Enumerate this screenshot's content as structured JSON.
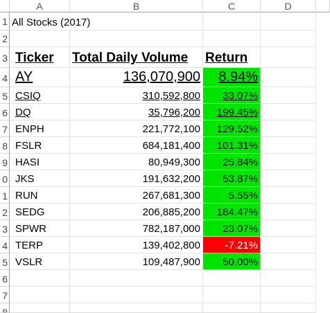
{
  "columns": [
    "A",
    "B",
    "C",
    "D"
  ],
  "row_numbers": [
    "1",
    "2",
    "3",
    "4",
    "5",
    "6",
    "7",
    "8",
    "9",
    "0",
    "1",
    "2",
    "3",
    "4",
    "5",
    "6",
    "7",
    "8"
  ],
  "title": "All Stocks (2017)",
  "headers": {
    "ticker": "Ticker",
    "volume": "Total Daily Volume",
    "return": "Return"
  },
  "rows": [
    {
      "ticker": "AY",
      "volume": "136,070,900",
      "return": "8.94%",
      "status": "positive"
    },
    {
      "ticker": "CSIQ",
      "volume": "310,592,800",
      "return": "33.07%",
      "status": "positive"
    },
    {
      "ticker": "DQ",
      "volume": "35,796,200",
      "return": "199.45%",
      "status": "positive"
    },
    {
      "ticker": "ENPH",
      "volume": "221,772,100",
      "return": "129.52%",
      "status": "positive"
    },
    {
      "ticker": "FSLR",
      "volume": "684,181,400",
      "return": "101.31%",
      "status": "positive"
    },
    {
      "ticker": "HASI",
      "volume": "80,949,300",
      "return": "25.84%",
      "status": "positive"
    },
    {
      "ticker": "JKS",
      "volume": "191,632,200",
      "return": "53.87%",
      "status": "positive"
    },
    {
      "ticker": "RUN",
      "volume": "267,681,300",
      "return": "5.55%",
      "status": "positive"
    },
    {
      "ticker": "SEDG",
      "volume": "206,885,200",
      "return": "184.47%",
      "status": "positive"
    },
    {
      "ticker": "SPWR",
      "volume": "782,187,000",
      "return": "23.07%",
      "status": "positive"
    },
    {
      "ticker": "TERP",
      "volume": "139,402,800",
      "return": "-7.21%",
      "status": "negative"
    },
    {
      "ticker": "VSLR",
      "volume": "109,487,900",
      "return": "50.00%",
      "status": "positive"
    }
  ],
  "colors": {
    "positive": "#00e400",
    "negative": "#ff0000"
  }
}
